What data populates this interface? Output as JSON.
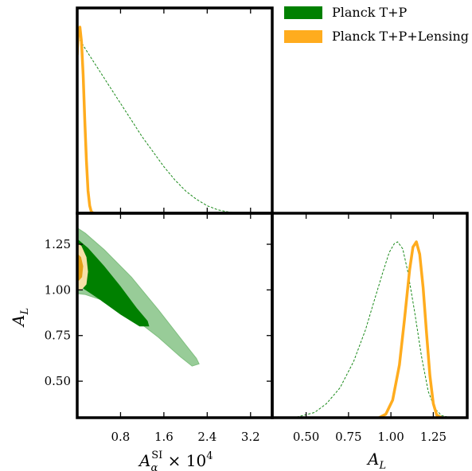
{
  "colors": {
    "tp_outer": "#98cc98",
    "tp_inner": "#008000",
    "tp_line": "#1a8a1a",
    "lens": "#ffac1e",
    "lens_outer": "#f6e0a8",
    "lens_inner": "#e2a018",
    "axis": "#000000"
  },
  "legend": {
    "entries": [
      {
        "label": "Planck T+P",
        "color": "#008000"
      },
      {
        "label": "Planck T+P+Lensing",
        "color": "#ffac1e"
      }
    ],
    "placement": "top-right"
  },
  "chart_data": [
    {
      "type": "line",
      "panel": "marginal A_alpha^SI x 10^4",
      "xlim": [
        0.0,
        3.6
      ],
      "series": [
        {
          "name": "Planck T+P",
          "style": "dashed",
          "x": [
            0.05,
            0.2,
            0.4,
            0.6,
            0.8,
            1.0,
            1.2,
            1.4,
            1.6,
            1.8,
            2.0,
            2.2,
            2.4,
            2.6,
            2.8,
            3.0,
            3.15
          ],
          "y": [
            0.93,
            0.86,
            0.77,
            0.68,
            0.59,
            0.5,
            0.41,
            0.33,
            0.25,
            0.18,
            0.12,
            0.075,
            0.04,
            0.018,
            0.006,
            0.0015,
            0.0
          ]
        },
        {
          "name": "Planck T+P+Lensing",
          "style": "solid",
          "x": [
            0.0,
            0.02,
            0.05,
            0.08,
            0.11,
            0.14,
            0.17,
            0.2,
            0.23,
            0.26,
            0.3
          ],
          "y": [
            0.85,
            0.97,
            1.0,
            0.92,
            0.74,
            0.5,
            0.28,
            0.12,
            0.04,
            0.008,
            0.0
          ]
        }
      ]
    },
    {
      "type": "contour",
      "panel": "A_L vs A_alpha^SI x 10^4",
      "xlabel": "A_α^SI × 10^4",
      "ylabel": "A_L",
      "xlim": [
        0.0,
        3.6
      ],
      "ylim": [
        0.3,
        1.42
      ],
      "xticks": [
        "0.8",
        "1.6",
        "2.4",
        "3.2"
      ],
      "yticks": [
        "0.50",
        "0.75",
        "1.00",
        "1.25"
      ],
      "contours": [
        {
          "name": "Planck T+P",
          "level": "95%",
          "points": [
            [
              0,
              1.34
            ],
            [
              0.15,
              1.31
            ],
            [
              0.5,
              1.22
            ],
            [
              1.0,
              1.07
            ],
            [
              1.5,
              0.89
            ],
            [
              2.0,
              0.7
            ],
            [
              2.2,
              0.625
            ],
            [
              2.25,
              0.595
            ],
            [
              2.12,
              0.583
            ],
            [
              1.9,
              0.635
            ],
            [
              1.5,
              0.74
            ],
            [
              1.0,
              0.855
            ],
            [
              0.5,
              0.94
            ],
            [
              0.15,
              0.975
            ],
            [
              0,
              0.98
            ]
          ]
        },
        {
          "name": "Planck T+P",
          "level": "68%",
          "points": [
            [
              0,
              1.28
            ],
            [
              0.2,
              1.23
            ],
            [
              0.5,
              1.13
            ],
            [
              0.8,
              1.02
            ],
            [
              1.1,
              0.9
            ],
            [
              1.3,
              0.83
            ],
            [
              1.33,
              0.8
            ],
            [
              1.15,
              0.8
            ],
            [
              0.8,
              0.865
            ],
            [
              0.4,
              0.95
            ],
            [
              0.1,
              1.01
            ],
            [
              0,
              1.03
            ]
          ]
        },
        {
          "name": "Planck T+P+Lensing",
          "level": "95%",
          "points": [
            [
              0,
              1.26
            ],
            [
              0.08,
              1.24
            ],
            [
              0.17,
              1.18
            ],
            [
              0.2,
              1.1
            ],
            [
              0.17,
              1.03
            ],
            [
              0.08,
              1.0
            ],
            [
              0,
              1.0
            ]
          ]
        },
        {
          "name": "Planck T+P+Lensing",
          "level": "68%",
          "points": [
            [
              0,
              1.2
            ],
            [
              0.07,
              1.18
            ],
            [
              0.11,
              1.13
            ],
            [
              0.09,
              1.07
            ],
            [
              0.03,
              1.05
            ],
            [
              0,
              1.05
            ]
          ]
        }
      ]
    },
    {
      "type": "line",
      "panel": "marginal A_L",
      "xlabel": "A_L",
      "xlim": [
        0.3,
        1.45
      ],
      "xticks": [
        "0.50",
        "0.75",
        "1.00",
        "1.25"
      ],
      "series": [
        {
          "name": "Planck T+P",
          "style": "dashed",
          "x": [
            0.35,
            0.45,
            0.55,
            0.62,
            0.7,
            0.78,
            0.85,
            0.9,
            0.95,
            0.99,
            1.02,
            1.04,
            1.07,
            1.1,
            1.14,
            1.18,
            1.22,
            1.26,
            1.3,
            1.35
          ],
          "y": [
            0.0,
            0.005,
            0.03,
            0.08,
            0.17,
            0.32,
            0.5,
            0.66,
            0.82,
            0.94,
            0.99,
            1.0,
            0.96,
            0.83,
            0.6,
            0.35,
            0.15,
            0.05,
            0.012,
            0.0
          ]
        },
        {
          "name": "Planck T+P+Lensing",
          "style": "solid",
          "x": [
            0.93,
            0.97,
            1.01,
            1.05,
            1.08,
            1.11,
            1.13,
            1.15,
            1.17,
            1.19,
            1.21,
            1.23,
            1.25,
            1.27,
            1.3
          ],
          "y": [
            0.0,
            0.02,
            0.1,
            0.3,
            0.56,
            0.84,
            0.97,
            1.0,
            0.93,
            0.74,
            0.48,
            0.24,
            0.08,
            0.015,
            0.0
          ]
        }
      ]
    }
  ]
}
